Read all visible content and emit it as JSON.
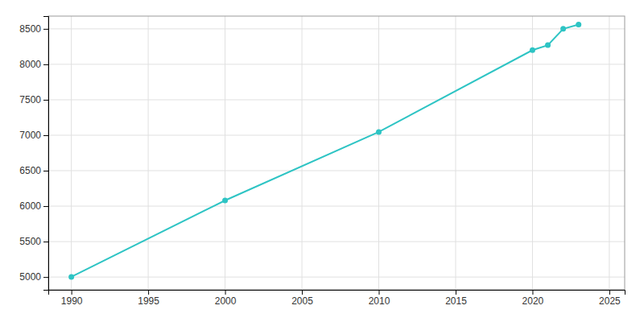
{
  "chart_data": {
    "type": "line",
    "x": [
      1990,
      2000,
      2010,
      2020,
      2021,
      2022,
      2023
    ],
    "values": [
      5003,
      6080,
      7046,
      8200,
      8270,
      8500,
      8560
    ],
    "color": "#2EC4C4",
    "marker": "circle",
    "xlim": [
      1988.5,
      2026
    ],
    "ylim": [
      4820,
      8680
    ],
    "xticks": [
      1990,
      1995,
      2000,
      2005,
      2010,
      2015,
      2020,
      2025
    ],
    "yticks": [
      5000,
      5500,
      6000,
      6500,
      7000,
      7500,
      8000,
      8500
    ],
    "grid": true
  }
}
